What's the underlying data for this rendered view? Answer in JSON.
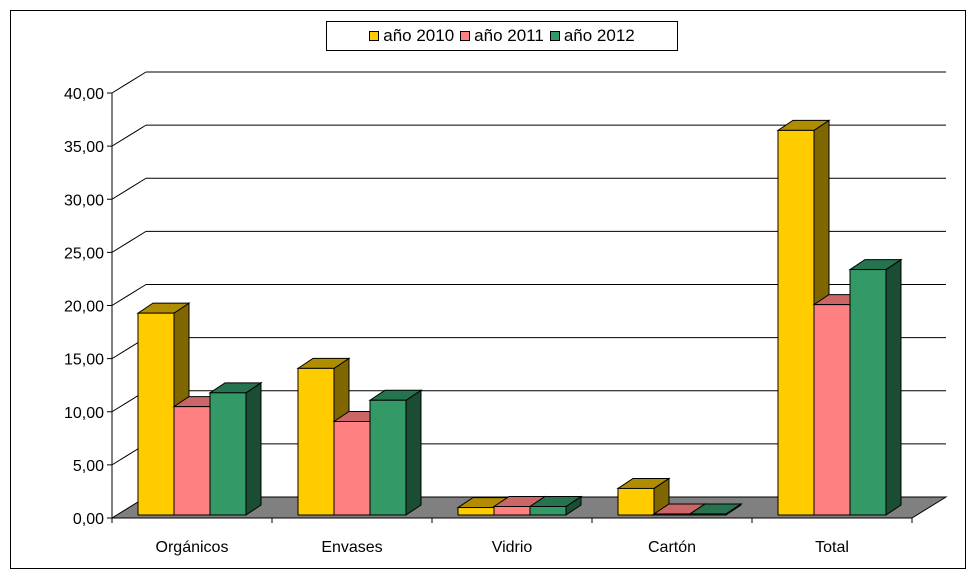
{
  "chart_data": {
    "type": "bar",
    "categories": [
      "Orgánicos",
      "Envases",
      "Vidrio",
      "Cartón",
      "Total"
    ],
    "series": [
      {
        "name": "año 2010",
        "color": "#ffcc00",
        "side_color": "#806600",
        "top_color": "#b08c00",
        "values": [
          19.0,
          13.8,
          0.7,
          2.5,
          36.2
        ]
      },
      {
        "name": "año 2011",
        "color": "#ff8080",
        "side_color": "#994d4d",
        "top_color": "#cc6666",
        "values": [
          10.2,
          8.8,
          0.8,
          0.1,
          19.8
        ]
      },
      {
        "name": "año 2012",
        "color": "#339966",
        "side_color": "#1a4d33",
        "top_color": "#267350",
        "values": [
          11.5,
          10.8,
          0.8,
          0.1,
          23.1
        ]
      }
    ],
    "yticks": [
      "0,00",
      "5,00",
      "10,00",
      "15,00",
      "20,00",
      "25,00",
      "30,00",
      "35,00",
      "40,00"
    ],
    "ylim": [
      0,
      40
    ],
    "grid": true,
    "legend": "top",
    "floor_color": "#808080"
  }
}
